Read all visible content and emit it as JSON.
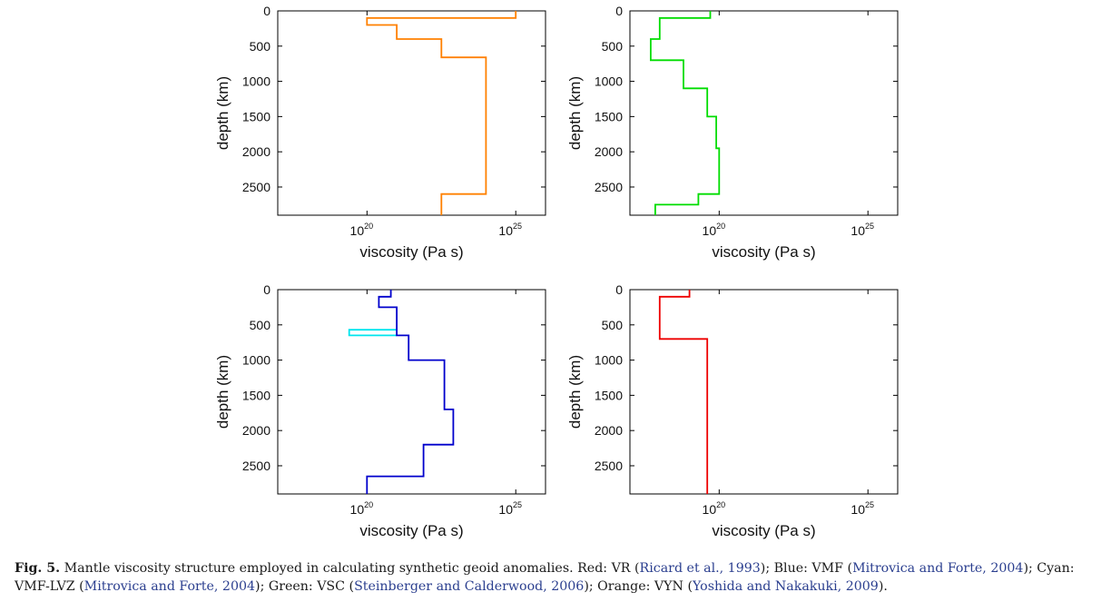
{
  "chart_data": [
    {
      "type": "line",
      "xscale": "log",
      "xlim_exp": [
        17,
        26
      ],
      "ylim": [
        0,
        2900
      ],
      "yreverse": true,
      "xlabel": "viscosity (Pa s)",
      "ylabel": "depth (km)",
      "xticks": [
        {
          "base": "10",
          "exp": "20",
          "value_exp": 20
        },
        {
          "base": "10",
          "exp": "25",
          "value_exp": 25
        }
      ],
      "yticks": [
        "0",
        "500",
        "1000",
        "1500",
        "2000",
        "2500"
      ],
      "series": [
        {
          "color": "#ff8000",
          "points": [
            [
              25,
              0
            ],
            [
              25,
              100
            ],
            [
              20,
              100
            ],
            [
              20,
              200
            ],
            [
              21,
              200
            ],
            [
              21,
              400
            ],
            [
              22.5,
              400
            ],
            [
              22.5,
              660
            ],
            [
              24,
              660
            ],
            [
              24,
              2600
            ],
            [
              22.5,
              2600
            ],
            [
              22.5,
              2900
            ]
          ]
        }
      ]
    },
    {
      "type": "line",
      "xscale": "log",
      "xlim_exp": [
        17,
        26
      ],
      "ylim": [
        0,
        2900
      ],
      "yreverse": true,
      "xlabel": "viscosity (Pa s)",
      "ylabel": "depth (km)",
      "xticks": [
        {
          "base": "10",
          "exp": "20",
          "value_exp": 20
        },
        {
          "base": "10",
          "exp": "25",
          "value_exp": 25
        }
      ],
      "yticks": [
        "0",
        "500",
        "1000",
        "1500",
        "2000",
        "2500"
      ],
      "series": [
        {
          "color": "#00dd00",
          "points": [
            [
              19.7,
              0
            ],
            [
              19.7,
              100
            ],
            [
              18,
              100
            ],
            [
              18,
              400
            ],
            [
              17.7,
              400
            ],
            [
              17.7,
              700
            ],
            [
              18.8,
              700
            ],
            [
              18.8,
              1100
            ],
            [
              19.6,
              1100
            ],
            [
              19.6,
              1500
            ],
            [
              19.9,
              1500
            ],
            [
              19.9,
              1950
            ],
            [
              20,
              1950
            ],
            [
              20,
              2600
            ],
            [
              19.3,
              2600
            ],
            [
              19.3,
              2750
            ],
            [
              17.85,
              2750
            ],
            [
              17.85,
              2900
            ]
          ]
        }
      ]
    },
    {
      "type": "line",
      "xscale": "log",
      "xlim_exp": [
        17,
        26
      ],
      "ylim": [
        0,
        2900
      ],
      "yreverse": true,
      "xlabel": "viscosity (Pa s)",
      "ylabel": "depth (km)",
      "xticks": [
        {
          "base": "10",
          "exp": "20",
          "value_exp": 20
        },
        {
          "base": "10",
          "exp": "25",
          "value_exp": 25
        }
      ],
      "yticks": [
        "0",
        "500",
        "1000",
        "1500",
        "2000",
        "2500"
      ],
      "series": [
        {
          "color": "#00e5ee",
          "points": [
            [
              21,
              570
            ],
            [
              19.4,
              570
            ],
            [
              19.4,
              650
            ],
            [
              21,
              650
            ]
          ]
        },
        {
          "color": "#0000cc",
          "points": [
            [
              20.8,
              0
            ],
            [
              20.8,
              100
            ],
            [
              20.4,
              100
            ],
            [
              20.4,
              250
            ],
            [
              21,
              250
            ],
            [
              21,
              650
            ],
            [
              21.4,
              650
            ],
            [
              21.4,
              1000
            ],
            [
              22.6,
              1000
            ],
            [
              22.6,
              1700
            ],
            [
              22.9,
              1700
            ],
            [
              22.9,
              2200
            ],
            [
              21.9,
              2200
            ],
            [
              21.9,
              2650
            ],
            [
              20,
              2650
            ],
            [
              20,
              2900
            ]
          ]
        }
      ]
    },
    {
      "type": "line",
      "xscale": "log",
      "xlim_exp": [
        17,
        26
      ],
      "ylim": [
        0,
        2900
      ],
      "yreverse": true,
      "xlabel": "viscosity (Pa s)",
      "ylabel": "depth (km)",
      "xticks": [
        {
          "base": "10",
          "exp": "20",
          "value_exp": 20
        },
        {
          "base": "10",
          "exp": "25",
          "value_exp": 25
        }
      ],
      "yticks": [
        "0",
        "500",
        "1000",
        "1500",
        "2000",
        "2500"
      ],
      "series": [
        {
          "color": "#ee0000",
          "points": [
            [
              19,
              0
            ],
            [
              19,
              100
            ],
            [
              18,
              100
            ],
            [
              18,
              700
            ],
            [
              19.6,
              700
            ],
            [
              19.6,
              2900
            ]
          ]
        }
      ]
    }
  ],
  "caption": {
    "label": "Fig. 5.",
    "text_1": " Mantle viscosity structure employed in calculating synthetic geoid anomalies. Red: VR (",
    "ref_1": "Ricard et al., 1993",
    "text_2": "); Blue: VMF (",
    "ref_2": "Mitrovica and Forte, 2004",
    "text_3": "); Cyan: VMF-LVZ (",
    "ref_3": "Mitrovica and Forte, 2004",
    "text_4": "); Green: VSC (",
    "ref_4": "Steinberger and Calderwood, 2006",
    "text_5": "); Orange: VYN (",
    "ref_5": "Yoshida and Nakakuki, 2009",
    "text_6": ")."
  }
}
